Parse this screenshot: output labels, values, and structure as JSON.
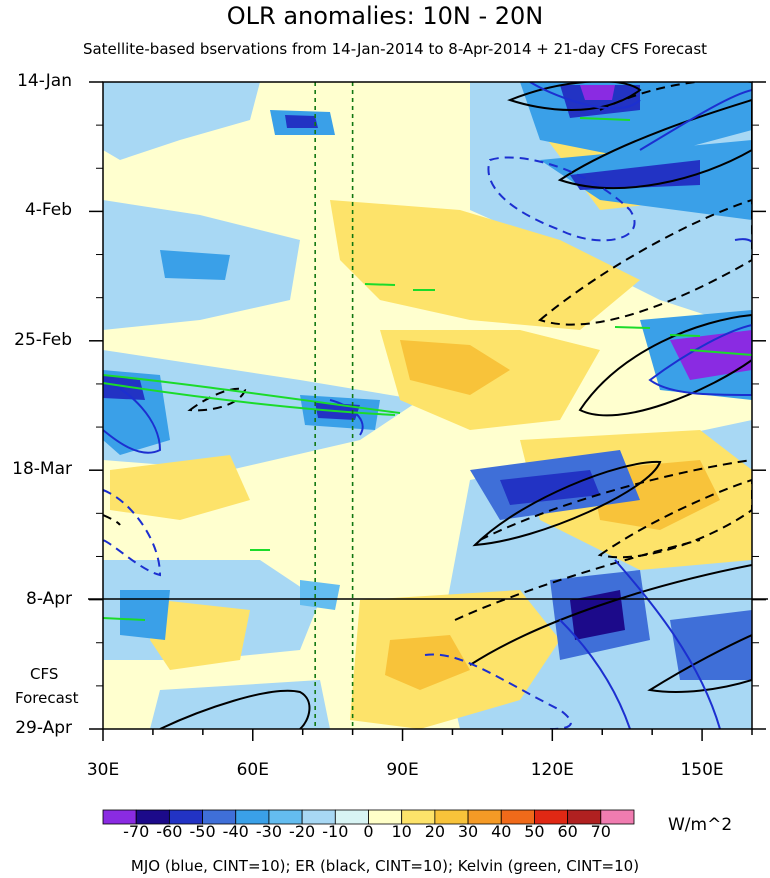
{
  "chart_data": {
    "type": "heatmap",
    "title": "OLR anomalies: 10N - 20N",
    "subtitle": "Satellite-based bservations from 14-Jan-2014 to 8-Apr-2014 + 21-day CFS Forecast",
    "xlabel": "",
    "ylabel": "",
    "x_range": [
      30,
      160
    ],
    "x_ticks": [
      "30E",
      "60E",
      "90E",
      "120E",
      "150E"
    ],
    "y_ticks": [
      "14-Jan",
      "4-Feb",
      "25-Feb",
      "18-Mar",
      "8-Apr",
      "29-Apr"
    ],
    "forecast_start": "8-Apr",
    "forecast_label": [
      "CFS",
      "Forecast"
    ],
    "reference_lines_lon": [
      72.5,
      80
    ],
    "colorbar": {
      "units": "W/m^2",
      "levels": [
        "-70",
        "-60",
        "-50",
        "-40",
        "-30",
        "-20",
        "-10",
        "0",
        "10",
        "20",
        "30",
        "40",
        "50",
        "60",
        "70"
      ],
      "colors": [
        "#8a2be2",
        "#1c0a8a",
        "#2233c4",
        "#3f6fd8",
        "#3aa0e8",
        "#64bdf0",
        "#a8d8f4",
        "#d8f4f4",
        "#ffffc8",
        "#fde36a",
        "#f8c33a",
        "#f59a26",
        "#f06a1a",
        "#e02814",
        "#b02020",
        "#f07cb0"
      ]
    },
    "contour_overlays": [
      {
        "name": "MJO",
        "color": "blue",
        "cint": 10
      },
      {
        "name": "ER",
        "color": "black",
        "cint": 10
      },
      {
        "name": "Kelvin",
        "color": "green",
        "cint": 10
      }
    ]
  },
  "caption": "MJO (blue, CINT=10); ER (black, CINT=10); Kelvin (green, CINT=10)"
}
